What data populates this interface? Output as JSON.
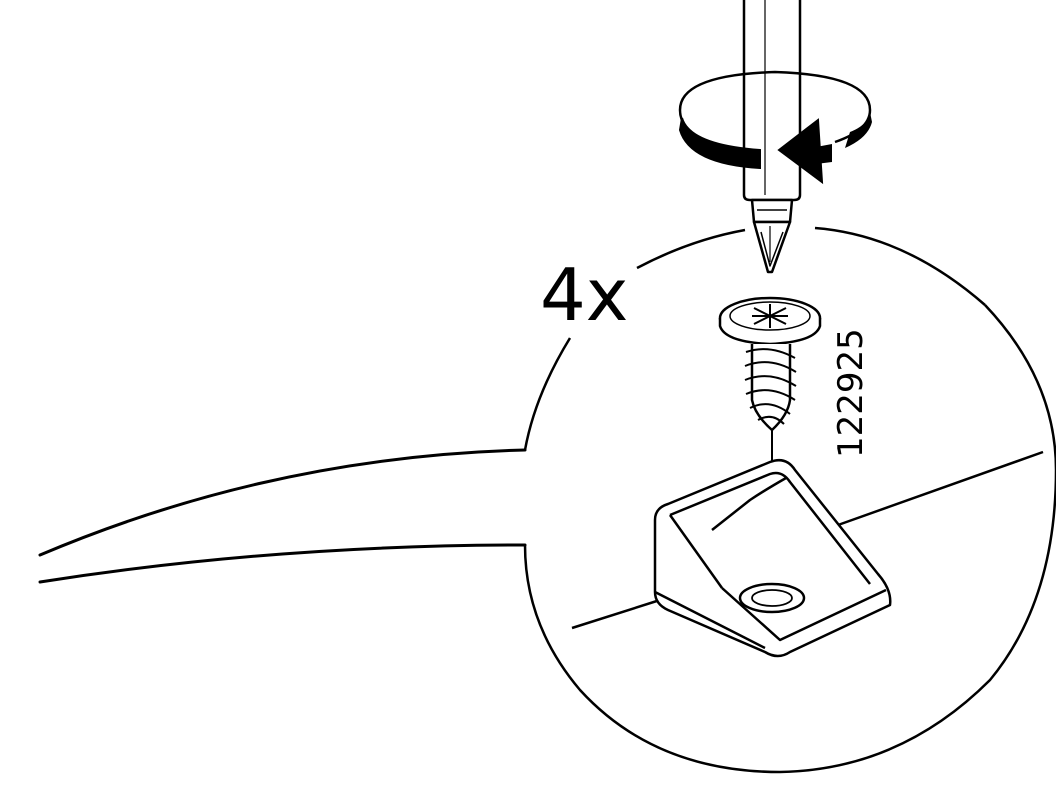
{
  "instruction": {
    "quantity": "4x",
    "part_number": "122925"
  },
  "icons": {
    "tool": "phillips-screwdriver-icon",
    "rotation": "clockwise-rotation-arrow-icon",
    "fastener": "wood-screw-icon",
    "bracket": "corner-bracket-icon"
  },
  "colors": {
    "line": "#000000",
    "fill": "#ffffff"
  }
}
